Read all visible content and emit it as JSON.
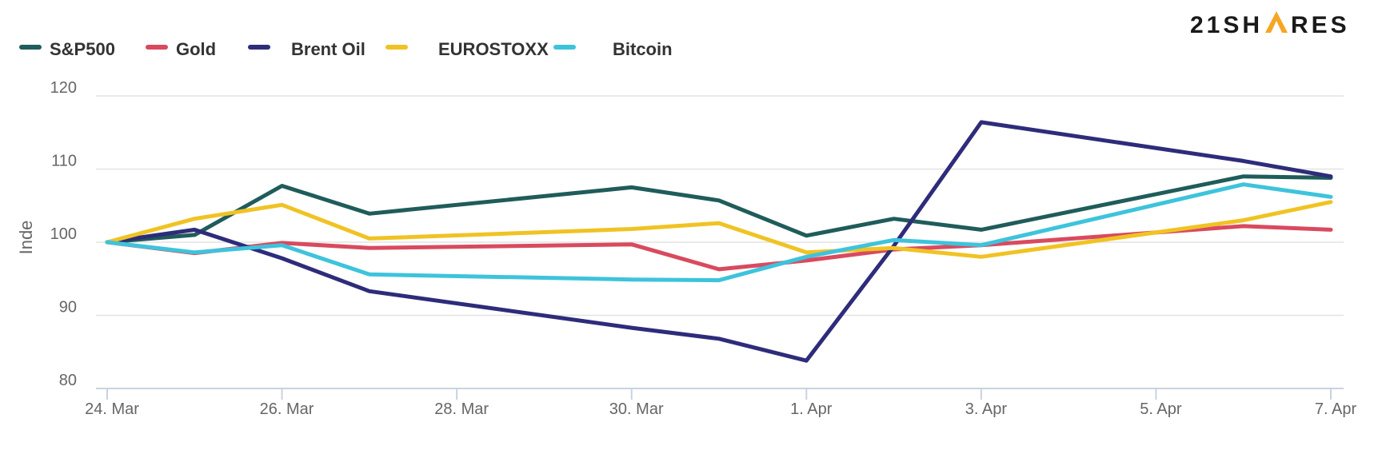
{
  "brand": {
    "before": "21SH",
    "after": "RES",
    "accent_color": "#f5a623"
  },
  "chart_data": {
    "type": "line",
    "title": "",
    "xlabel": "",
    "ylabel": "Inde",
    "ylim": [
      80,
      120
    ],
    "yticks": [
      "80",
      "90",
      "100",
      "110",
      "120"
    ],
    "xticks": [
      "24. Mar",
      "26. Mar",
      "28. Mar",
      "30. Mar",
      "1. Apr",
      "3. Apr",
      "5. Apr",
      "7. Apr"
    ],
    "x": [
      "24. Mar",
      "25. Mar",
      "26. Mar",
      "27. Mar",
      "30. Mar",
      "31. Mar",
      "1. Apr",
      "2. Apr",
      "3. Apr",
      "6. Apr",
      "7. Apr"
    ],
    "grid": true,
    "legend_position": "top-left",
    "series": [
      {
        "name": "S&P500",
        "color": "#1f5c5a",
        "values": [
          100,
          101,
          107.7,
          103.9,
          107.5,
          105.7,
          100.9,
          103.2,
          101.7,
          109,
          108.8
        ]
      },
      {
        "name": "Gold",
        "color": "#d94a5f",
        "values": [
          100,
          98.5,
          99.9,
          99.2,
          99.7,
          96.3,
          97.5,
          99,
          99.6,
          102.2,
          101.7
        ]
      },
      {
        "name": "Brent Oil",
        "color": "#2e2c7a",
        "values": [
          100,
          101.7,
          97.8,
          93.3,
          88.3,
          86.8,
          83.8,
          99.5,
          116.4,
          111.1,
          109
        ]
      },
      {
        "name": "EUROSTOXX",
        "color": "#f0c324",
        "values": [
          100,
          103.2,
          105.1,
          100.5,
          101.8,
          102.6,
          98.6,
          99.2,
          98,
          103,
          105.5
        ]
      },
      {
        "name": "Bitcoin",
        "color": "#3ec3dc",
        "values": [
          100,
          98.6,
          99.6,
          95.6,
          94.9,
          94.8,
          98,
          100.3,
          99.6,
          107.9,
          106.2
        ]
      }
    ]
  }
}
